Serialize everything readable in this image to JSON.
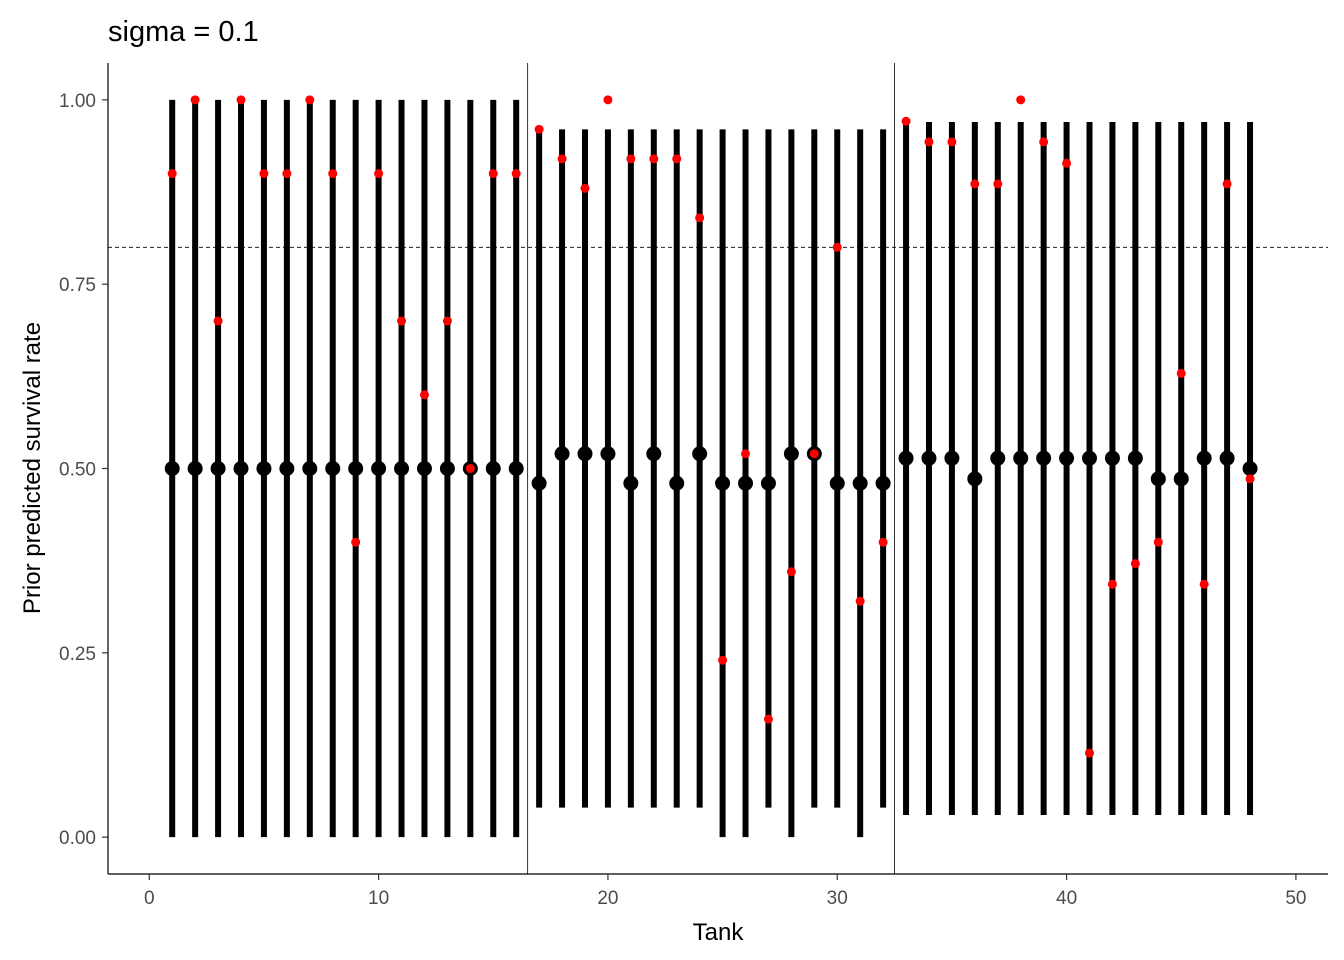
{
  "chart_data": {
    "type": "pointrange",
    "title": "sigma = 0.1",
    "xlabel": "Tank",
    "ylabel": "Prior predicted survival rate",
    "xlim": [
      -1.8,
      51.4
    ],
    "ylim": [
      -0.05,
      1.05
    ],
    "xticks": [
      0,
      10,
      20,
      30,
      40,
      50
    ],
    "xtick_labels": [
      "0",
      "10",
      "20",
      "30",
      "40",
      "50"
    ],
    "yticks": [
      0,
      0.25,
      0.5,
      0.75,
      1.0
    ],
    "ytick_labels": [
      "0.00",
      "0.25",
      "0.50",
      "0.75",
      "1.00"
    ],
    "hline": {
      "y": 0.8,
      "style": "dashed"
    },
    "vlines": [
      16.5,
      32.5
    ],
    "grid": false,
    "legend": "none",
    "colors": {
      "interval": "#000000",
      "observed": "#ff0000"
    },
    "tanks": [
      1,
      2,
      3,
      4,
      5,
      6,
      7,
      8,
      9,
      10,
      11,
      12,
      13,
      14,
      15,
      16,
      17,
      18,
      19,
      20,
      21,
      22,
      23,
      24,
      25,
      26,
      27,
      28,
      29,
      30,
      31,
      32,
      33,
      34,
      35,
      36,
      37,
      38,
      39,
      40,
      41,
      42,
      43,
      44,
      45,
      46,
      47,
      48
    ],
    "median": [
      0.5,
      0.5,
      0.5,
      0.5,
      0.5,
      0.5,
      0.5,
      0.5,
      0.5,
      0.5,
      0.5,
      0.5,
      0.5,
      0.5,
      0.5,
      0.5,
      0.48,
      0.52,
      0.52,
      0.52,
      0.48,
      0.52,
      0.48,
      0.52,
      0.48,
      0.48,
      0.48,
      0.52,
      0.52,
      0.48,
      0.48,
      0.48,
      0.514,
      0.514,
      0.514,
      0.486,
      0.514,
      0.514,
      0.514,
      0.514,
      0.514,
      0.514,
      0.514,
      0.486,
      0.486,
      0.514,
      0.514,
      0.5
    ],
    "lower": [
      0,
      0,
      0,
      0,
      0,
      0,
      0,
      0,
      0,
      0,
      0,
      0,
      0,
      0,
      0,
      0,
      0.04,
      0.04,
      0.04,
      0.04,
      0.04,
      0.04,
      0.04,
      0.04,
      0,
      0,
      0.04,
      0,
      0.04,
      0.04,
      0,
      0.04,
      0.03,
      0.03,
      0.03,
      0.03,
      0.03,
      0.03,
      0.03,
      0.03,
      0.03,
      0.03,
      0.03,
      0.03,
      0.03,
      0.03,
      0.03,
      0.03
    ],
    "upper": [
      1,
      1,
      1,
      1,
      1,
      1,
      1,
      1,
      1,
      1,
      1,
      1,
      1,
      1,
      1,
      1,
      0.96,
      0.96,
      0.96,
      0.96,
      0.96,
      0.96,
      0.96,
      0.96,
      0.96,
      0.96,
      0.96,
      0.96,
      0.96,
      0.96,
      0.96,
      0.96,
      0.97,
      0.97,
      0.97,
      0.97,
      0.97,
      0.97,
      0.97,
      0.97,
      0.97,
      0.97,
      0.97,
      0.97,
      0.97,
      0.97,
      0.97,
      0.97
    ],
    "observed": [
      0.9,
      1.0,
      0.7,
      1.0,
      0.9,
      0.9,
      1.0,
      0.9,
      0.4,
      0.9,
      0.7,
      0.6,
      0.7,
      0.5,
      0.9,
      0.9,
      0.96,
      0.92,
      0.88,
      1.0,
      0.92,
      0.92,
      0.92,
      0.84,
      0.24,
      0.52,
      0.16,
      0.36,
      0.52,
      0.8,
      0.32,
      0.4,
      0.971,
      0.943,
      0.943,
      0.886,
      0.886,
      1.0,
      0.943,
      0.914,
      0.114,
      0.343,
      0.371,
      0.4,
      0.629,
      0.343,
      0.886,
      0.486
    ]
  }
}
